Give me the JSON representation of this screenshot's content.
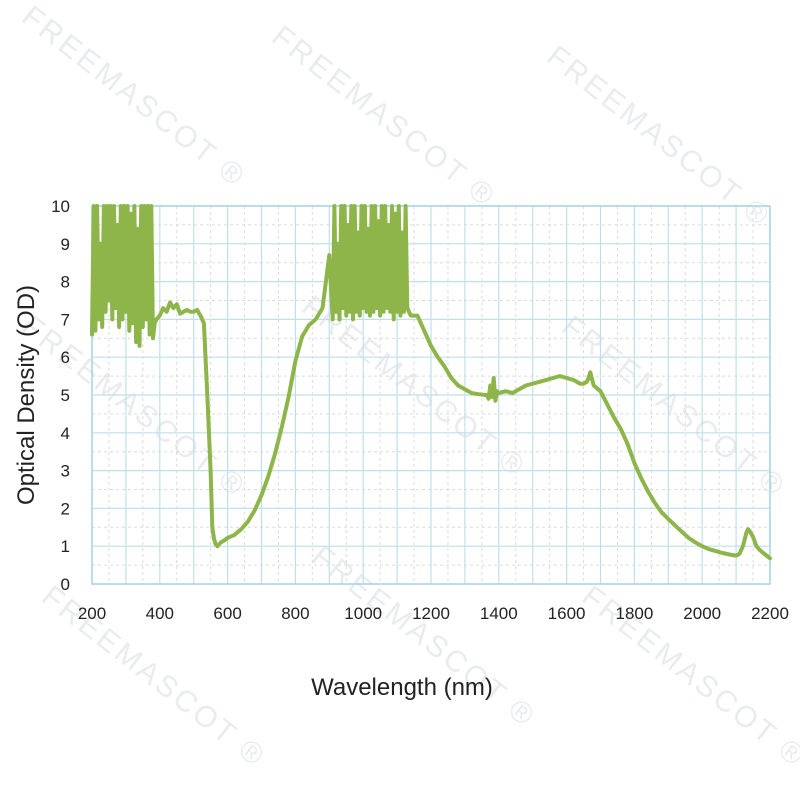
{
  "watermark": {
    "text": "FREEMASCOT",
    "mark": "®"
  },
  "chart_data": {
    "type": "line",
    "xlabel": "Wavelength (nm)",
    "ylabel": "Optical Density (OD)",
    "xlim": [
      200,
      2200
    ],
    "ylim": [
      0,
      10
    ],
    "x_ticks": [
      200,
      400,
      600,
      800,
      1000,
      1200,
      1400,
      1600,
      1800,
      2000,
      2200
    ],
    "y_ticks": [
      0,
      1,
      2,
      3,
      4,
      5,
      6,
      7,
      8,
      9,
      10
    ],
    "grid": true,
    "legend": "none",
    "colors": {
      "line": "#8db54a",
      "grid": "#bfe0ea",
      "grid_minor": "#dcdcdc",
      "frame": "#a8d4e2"
    },
    "series": [
      {
        "x": [
          200,
          205,
          210,
          215,
          220,
          225,
          230,
          235,
          240,
          245,
          250,
          255,
          260,
          265,
          270,
          275,
          280,
          285,
          290,
          295,
          300,
          305,
          310,
          315,
          320,
          325,
          330,
          335,
          340,
          345,
          350,
          355,
          360,
          365,
          370,
          375,
          380,
          385,
          390,
          400,
          410,
          420,
          430,
          440,
          450,
          460,
          470,
          480,
          490,
          500,
          510,
          520,
          530,
          540,
          550,
          555,
          560,
          565,
          570,
          575,
          580,
          590,
          600,
          620,
          640,
          660,
          680,
          700,
          720,
          740,
          760,
          780,
          800,
          820,
          840,
          860,
          880,
          900,
          910,
          915,
          920,
          925,
          930,
          935,
          940,
          945,
          950,
          955,
          960,
          965,
          970,
          975,
          980,
          985,
          990,
          995,
          1000,
          1005,
          1010,
          1015,
          1020,
          1025,
          1030,
          1035,
          1040,
          1045,
          1050,
          1055,
          1060,
          1065,
          1070,
          1075,
          1080,
          1085,
          1090,
          1095,
          1100,
          1105,
          1110,
          1115,
          1120,
          1125,
          1130,
          1140,
          1160,
          1180,
          1200,
          1220,
          1240,
          1260,
          1280,
          1300,
          1320,
          1340,
          1360,
          1365,
          1370,
          1375,
          1380,
          1385,
          1390,
          1395,
          1400,
          1420,
          1440,
          1460,
          1480,
          1500,
          1520,
          1540,
          1560,
          1580,
          1600,
          1620,
          1640,
          1650,
          1660,
          1665,
          1670,
          1680,
          1700,
          1720,
          1740,
          1760,
          1780,
          1800,
          1820,
          1840,
          1860,
          1880,
          1900,
          1920,
          1940,
          1960,
          1980,
          2000,
          2020,
          2040,
          2060,
          2080,
          2100,
          2110,
          2120,
          2130,
          2135,
          2140,
          2150,
          2160,
          2170,
          2180,
          2190,
          2200
        ],
        "y": [
          6.6,
          10,
          6.7,
          10,
          7.0,
          9.0,
          6.8,
          10,
          7.2,
          10,
          7.5,
          10,
          7.0,
          10,
          7.3,
          9.5,
          6.8,
          10,
          7.0,
          10,
          7.2,
          10,
          6.7,
          9.8,
          6.9,
          10,
          6.4,
          9.4,
          6.3,
          10,
          6.8,
          10,
          7.0,
          10,
          6.6,
          10,
          6.5,
          6.9,
          7.0,
          7.1,
          7.3,
          7.2,
          7.45,
          7.3,
          7.4,
          7.15,
          7.2,
          7.25,
          7.2,
          7.2,
          7.25,
          7.1,
          6.9,
          5.0,
          3.0,
          1.5,
          1.2,
          1.05,
          1.0,
          1.05,
          1.1,
          1.15,
          1.22,
          1.3,
          1.45,
          1.65,
          1.95,
          2.35,
          2.85,
          3.45,
          4.15,
          4.95,
          5.9,
          6.55,
          6.85,
          7.0,
          7.3,
          8.7,
          7.0,
          10,
          7.2,
          9.0,
          7.0,
          10,
          7.3,
          10,
          7.1,
          9.5,
          7.2,
          10,
          7.0,
          10,
          7.2,
          9.3,
          7.1,
          10,
          7.3,
          10,
          7.2,
          9.4,
          7.1,
          10,
          7.2,
          10,
          7.3,
          9.6,
          7.1,
          10,
          7.2,
          10,
          7.3,
          9.5,
          7.2,
          10,
          7.0,
          9.8,
          7.2,
          10,
          7.1,
          9.3,
          7.2,
          10,
          7.3,
          7.1,
          7.1,
          6.7,
          6.3,
          6.0,
          5.75,
          5.45,
          5.25,
          5.15,
          5.05,
          5.02,
          5.0,
          5.0,
          4.9,
          5.25,
          4.95,
          5.45,
          4.85,
          5.1,
          5.05,
          5.1,
          5.05,
          5.15,
          5.25,
          5.3,
          5.35,
          5.4,
          5.45,
          5.5,
          5.45,
          5.4,
          5.3,
          5.3,
          5.35,
          5.45,
          5.6,
          5.25,
          5.1,
          4.75,
          4.4,
          4.1,
          3.7,
          3.2,
          2.8,
          2.45,
          2.15,
          1.9,
          1.72,
          1.55,
          1.38,
          1.22,
          1.1,
          1.0,
          0.92,
          0.87,
          0.82,
          0.78,
          0.75,
          0.8,
          1.0,
          1.35,
          1.45,
          1.4,
          1.25,
          1.0,
          0.9,
          0.82,
          0.75,
          0.68
        ]
      }
    ]
  }
}
